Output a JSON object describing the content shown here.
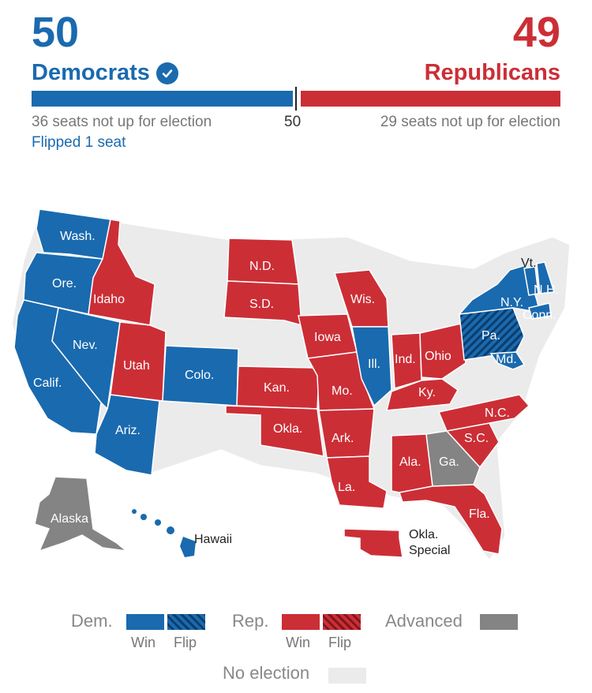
{
  "header": {
    "dem_count": "50",
    "dem_label": "Democrats",
    "rep_count": "49",
    "rep_label": "Republicans",
    "dem_not_up": "36 seats not up for election",
    "rep_not_up": "29 seats not up for election",
    "majority_mark": "50",
    "flipped": "Flipped 1 seat"
  },
  "colors": {
    "dem": "#1a6aaf",
    "rep": "#cc2e36",
    "advanced": "#848484",
    "no_election": "#ebebeb"
  },
  "map": {
    "states": {
      "wash": "Wash.",
      "ore": "Ore.",
      "calif": "Calif.",
      "nev": "Nev.",
      "ariz": "Ariz.",
      "idaho": "Idaho",
      "utah": "Utah",
      "colo": "Colo.",
      "nd": "N.D.",
      "sd": "S.D.",
      "kan": "Kan.",
      "okla": "Okla.",
      "iowa": "Iowa",
      "mo": "Mo.",
      "ark": "Ark.",
      "la": "La.",
      "wis": "Wis.",
      "ill": "Ill.",
      "ind": "Ind.",
      "ohio": "Ohio",
      "ky": "Ky.",
      "ala": "Ala.",
      "ga": "Ga.",
      "fla": "Fla.",
      "sc": "S.C.",
      "nc": "N.C.",
      "pa": "Pa.",
      "ny": "N.Y.",
      "vt": "Vt.",
      "nh": "N.H.",
      "conn": "Conn.",
      "md": "Md.",
      "alaska": "Alaska",
      "hawaii": "Hawaii",
      "okla_special_1": "Okla.",
      "okla_special_2": "Special"
    }
  },
  "legend": {
    "dem": "Dem.",
    "rep": "Rep.",
    "win": "Win",
    "flip": "Flip",
    "advanced": "Advanced",
    "no_election": "No election"
  }
}
